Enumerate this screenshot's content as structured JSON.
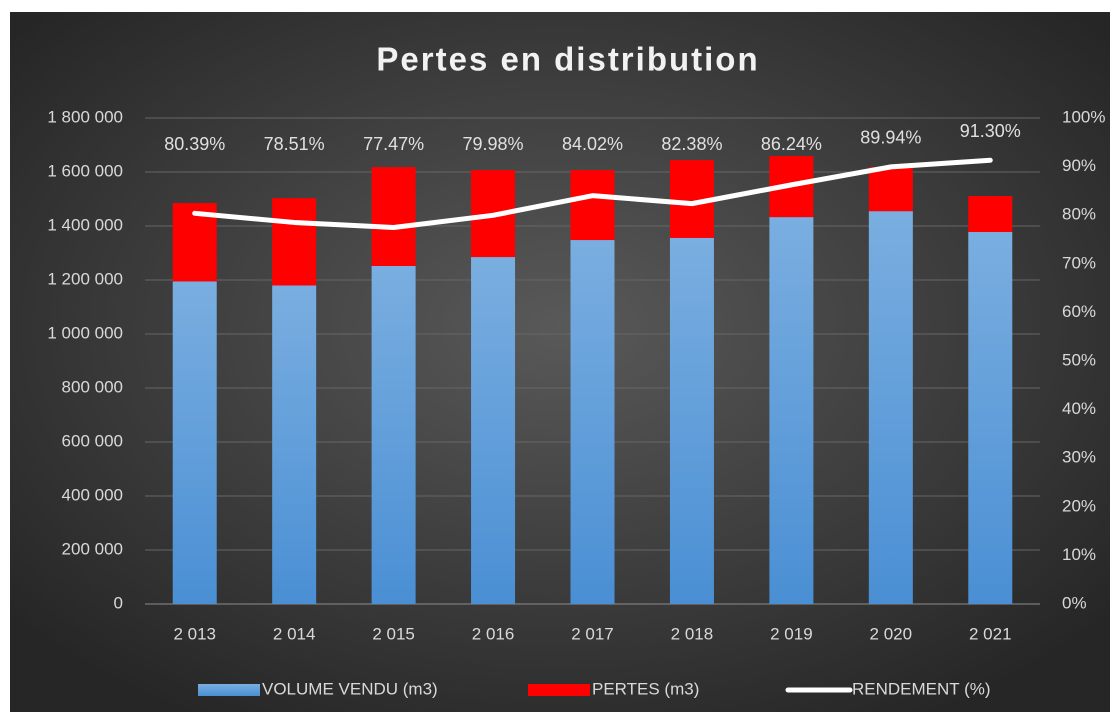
{
  "chart_data": {
    "type": "bar-line",
    "title": "Pertes en distribution",
    "categories": [
      "2 013",
      "2 014",
      "2 015",
      "2 016",
      "2 017",
      "2 018",
      "2 019",
      "2 020",
      "2 021"
    ],
    "stacked": true,
    "series": [
      {
        "name": "VOLUME VENDU (m3)",
        "color": "#5b9bd5",
        "kind": "bar",
        "values": [
          1195000,
          1180000,
          1252000,
          1285000,
          1348000,
          1356000,
          1433000,
          1455000,
          1378000
        ]
      },
      {
        "name": "PERTES (m3)",
        "color": "#ff0000",
        "kind": "bar",
        "values": [
          290000,
          323000,
          366000,
          322000,
          259000,
          288000,
          226000,
          163000,
          133000
        ]
      },
      {
        "name": "RENDEMENT (%)",
        "color": "#ffffff",
        "kind": "line",
        "axis": "y2",
        "values": [
          80.39,
          78.51,
          77.47,
          79.98,
          84.02,
          82.38,
          86.24,
          89.94,
          91.3
        ],
        "value_labels": [
          "80.39%",
          "78.51%",
          "77.47%",
          "79.98%",
          "84.02%",
          "82.38%",
          "86.24%",
          "89.94%",
          "91.30%"
        ]
      }
    ],
    "ylim": [
      0,
      1800000
    ],
    "yticks": [
      0,
      {
        "value": 200000,
        "label": "200 000"
      },
      {
        "value": 400000,
        "label": "400 000"
      },
      {
        "value": 600000,
        "label": "600 000"
      },
      {
        "value": 800000,
        "label": "800 000"
      },
      {
        "value": 1000000,
        "label": "1 000 000"
      },
      {
        "value": 1200000,
        "label": "1 200 000"
      },
      {
        "value": 1400000,
        "label": "1 400 000"
      },
      {
        "value": 1600000,
        "label": "1 600 000"
      },
      {
        "value": 1800000,
        "label": "1 800 000"
      }
    ],
    "y2lim": [
      0,
      100
    ],
    "y2ticks": [
      {
        "value": 0,
        "label": "0%"
      },
      {
        "value": 10,
        "label": "10%"
      },
      {
        "value": 20,
        "label": "20%"
      },
      {
        "value": 30,
        "label": "30%"
      },
      {
        "value": 40,
        "label": "40%"
      },
      {
        "value": 50,
        "label": "50%"
      },
      {
        "value": 60,
        "label": "60%"
      },
      {
        "value": 70,
        "label": "70%"
      },
      {
        "value": 80,
        "label": "80%"
      },
      {
        "value": 90,
        "label": "90%"
      },
      {
        "value": 100,
        "label": "100%"
      }
    ],
    "grid": true,
    "legend": "bottom"
  }
}
